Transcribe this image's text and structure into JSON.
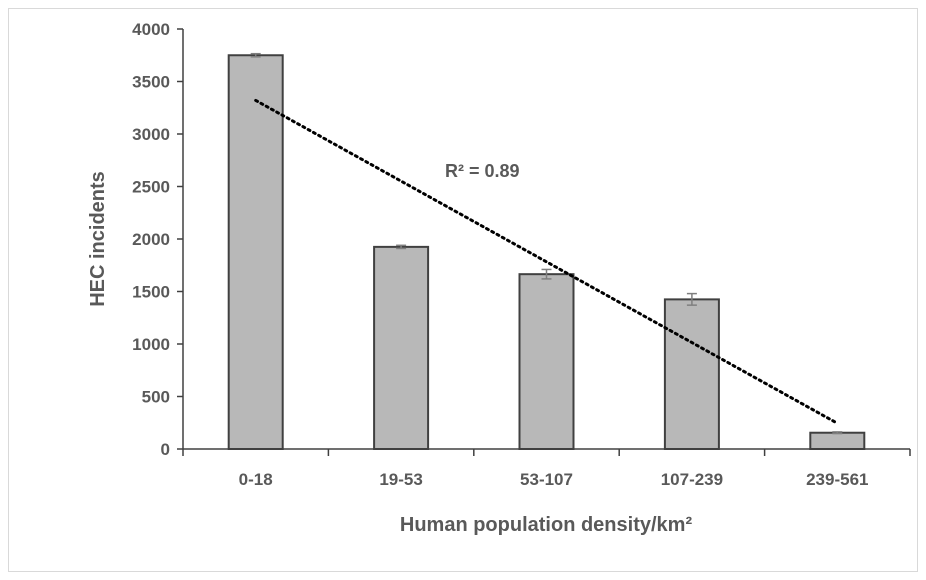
{
  "chart_data": {
    "type": "bar",
    "title": "",
    "xlabel": "Human population density/km²",
    "ylabel": "HEC incidents",
    "categories": [
      "0-18",
      "19-53",
      "53-107",
      "107-239",
      "239-561"
    ],
    "values": [
      3750,
      1925,
      1665,
      1425,
      155
    ],
    "error": [
      15,
      15,
      45,
      55,
      8
    ],
    "ylim": [
      0,
      4000
    ],
    "yticks": [
      0,
      500,
      1000,
      1500,
      2000,
      2500,
      3000,
      3500,
      4000
    ],
    "grid": false,
    "legend": "none",
    "trendline": {
      "type": "linear",
      "style": "dotted",
      "start": 3320,
      "end": 245
    },
    "annotation": "R² = 0.89",
    "colors": {
      "bar_fill": "#b8b8b8",
      "bar_stroke": "#404040",
      "axis": "#404040",
      "text": "#595959",
      "trendline": "#000000",
      "error_bar": "#7f7f7f"
    }
  }
}
